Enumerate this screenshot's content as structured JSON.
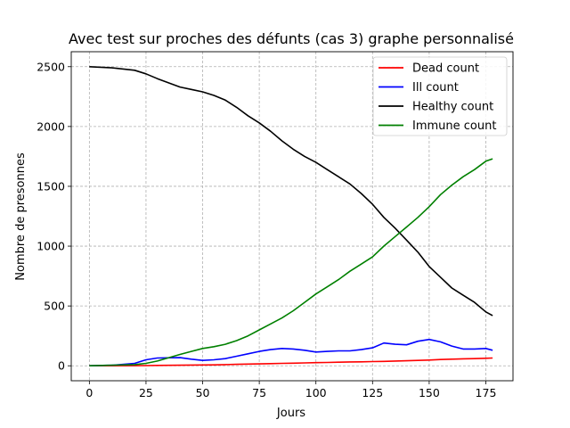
{
  "chart_data": {
    "type": "line",
    "title": "Avec test sur proches des défunts (cas 3) graphe personnalisé",
    "xlabel": "Jours",
    "ylabel": "Nombre de presonnes",
    "xlim": [
      -8,
      187
    ],
    "ylim": [
      -125,
      2625
    ],
    "xticks": [
      0,
      25,
      50,
      75,
      100,
      125,
      150,
      175
    ],
    "yticks": [
      0,
      500,
      1000,
      1500,
      2000,
      2500
    ],
    "grid": true,
    "grid_style": "dashed",
    "legend_position": "top-right",
    "x": [
      0,
      10,
      20,
      25,
      30,
      40,
      45,
      50,
      55,
      60,
      65,
      70,
      75,
      80,
      85,
      90,
      95,
      100,
      105,
      110,
      115,
      120,
      125,
      130,
      135,
      140,
      145,
      150,
      155,
      160,
      165,
      170,
      175,
      178
    ],
    "series": [
      {
        "name": "Dead count",
        "color": "#ff0000",
        "values": [
          0,
          0,
          1,
          2,
          3,
          5,
          6,
          7,
          8,
          10,
          12,
          14,
          16,
          18,
          20,
          22,
          24,
          26,
          28,
          30,
          32,
          33,
          35,
          37,
          40,
          42,
          45,
          48,
          52,
          55,
          58,
          60,
          63,
          65
        ]
      },
      {
        "name": "Ill count",
        "color": "#0000ff",
        "values": [
          0,
          5,
          20,
          50,
          65,
          68,
          55,
          45,
          50,
          60,
          80,
          100,
          120,
          135,
          145,
          140,
          130,
          115,
          120,
          125,
          125,
          135,
          150,
          190,
          180,
          175,
          205,
          220,
          200,
          165,
          140,
          140,
          145,
          130
        ]
      },
      {
        "name": "Healthy count",
        "color": "#000000",
        "values": [
          2500,
          2490,
          2470,
          2440,
          2400,
          2330,
          2310,
          2290,
          2260,
          2220,
          2160,
          2090,
          2030,
          1960,
          1880,
          1810,
          1750,
          1700,
          1640,
          1580,
          1520,
          1440,
          1350,
          1240,
          1150,
          1050,
          950,
          830,
          740,
          650,
          590,
          530,
          450,
          420
        ]
      },
      {
        "name": "Immune count",
        "color": "#008000",
        "values": [
          0,
          5,
          10,
          20,
          40,
          95,
          120,
          145,
          160,
          180,
          210,
          250,
          300,
          350,
          400,
          460,
          530,
          600,
          660,
          720,
          790,
          850,
          910,
          1000,
          1080,
          1160,
          1240,
          1330,
          1430,
          1510,
          1580,
          1640,
          1710,
          1730
        ]
      }
    ]
  }
}
